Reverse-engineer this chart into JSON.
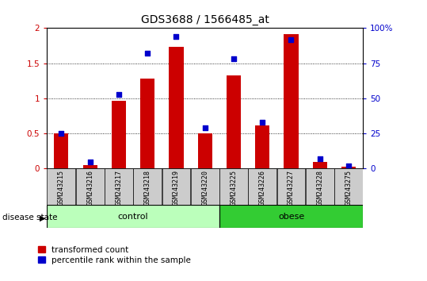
{
  "title": "GDS3688 / 1566485_at",
  "samples": [
    "GSM243215",
    "GSM243216",
    "GSM243217",
    "GSM243218",
    "GSM243219",
    "GSM243220",
    "GSM243225",
    "GSM243226",
    "GSM243227",
    "GSM243228",
    "GSM243275"
  ],
  "transformed_count": [
    0.5,
    0.05,
    0.97,
    1.28,
    1.73,
    0.5,
    1.33,
    0.62,
    1.91,
    0.1,
    0.03
  ],
  "percentile_rank": [
    25,
    5,
    53,
    82,
    94,
    29,
    78,
    33,
    92,
    7,
    2
  ],
  "control_count": 6,
  "obese_count": 5,
  "ylim_left": [
    0,
    2
  ],
  "ylim_right": [
    0,
    100
  ],
  "yticks_left": [
    0,
    0.5,
    1.0,
    1.5,
    2.0
  ],
  "ytick_labels_left": [
    "0",
    "0.5",
    "1",
    "1.5",
    "2"
  ],
  "yticks_right": [
    0,
    25,
    50,
    75,
    100
  ],
  "ytick_labels_right": [
    "0",
    "25",
    "50",
    "75",
    "100%"
  ],
  "bar_color": "#cc0000",
  "dot_color": "#0000cc",
  "control_color": "#bbffbb",
  "obese_color": "#33cc33",
  "label_bg_color": "#cccccc",
  "legend_red_label": "transformed count",
  "legend_blue_label": "percentile rank within the sample",
  "disease_state_label": "disease state",
  "figsize": [
    5.39,
    3.54
  ],
  "dpi": 100
}
